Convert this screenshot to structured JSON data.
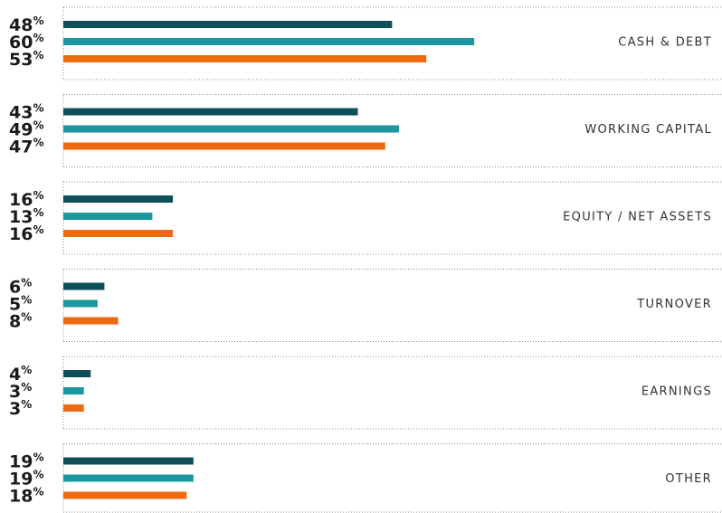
{
  "chart_data": {
    "type": "bar",
    "orientation": "horizontal",
    "categories": [
      "CASH & DEBT",
      "WORKING CAPITAL",
      "EQUITY / NET ASSETS",
      "TURNOVER",
      "EARNINGS",
      "OTHER"
    ],
    "series": [
      {
        "color": "#0e4f5a",
        "values": [
          48,
          43,
          16,
          6,
          4,
          19
        ],
        "value_labels": [
          "48%",
          "43%",
          "16%",
          "6%",
          "4%",
          "19%"
        ]
      },
      {
        "color": "#1a97a0",
        "values": [
          60,
          49,
          13,
          5,
          3,
          19
        ],
        "value_labels": [
          "60%",
          "49%",
          "13%",
          "5%",
          "3%",
          "19%"
        ]
      },
      {
        "color": "#ee6a10",
        "values": [
          53,
          47,
          16,
          8,
          3,
          18
        ],
        "value_labels": [
          "53%",
          "47%",
          "16%",
          "8%",
          "3%",
          "18%"
        ]
      }
    ]
  }
}
